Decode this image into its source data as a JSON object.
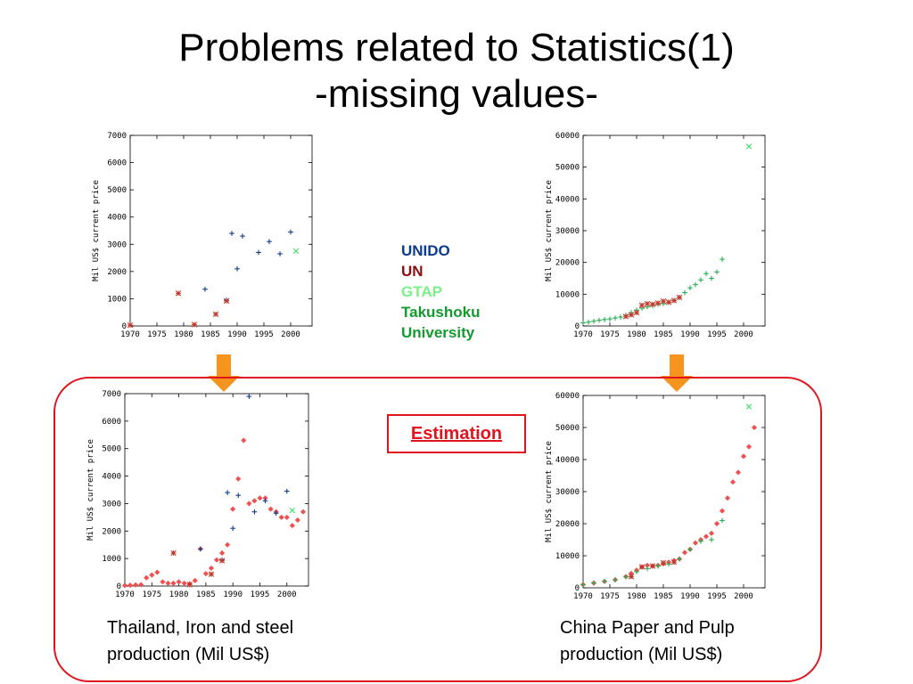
{
  "title": {
    "line1": "Problems related to Statistics(1)",
    "line2": "-missing values-"
  },
  "legend": {
    "items": [
      {
        "label": "UNIDO",
        "color": "#0d3c8c"
      },
      {
        "label": "UN",
        "color": "#8b0f0f"
      },
      {
        "label": "GTAP",
        "color": "#7cf08a"
      },
      {
        "label": "Takushoku",
        "color": "#129a2e"
      },
      {
        "label": "University",
        "color": "#129a2e"
      }
    ]
  },
  "estimation_label": "Estimation",
  "captions": {
    "left_line1": "Thailand, Iron and steel",
    "left_line2": "production (Mil US$)",
    "right_line1": "China Paper and Pulp",
    "right_line2": "production (Mil US$)"
  },
  "colors": {
    "accent_red": "#e0141e",
    "arrow_orange": "#f7941d",
    "unido": "#0d3c8c",
    "un": "#c0392b",
    "gtap": "#3de06a",
    "estimate": "#f05050"
  },
  "chart_data": [
    {
      "id": "thailand_raw",
      "type": "scatter",
      "ylabel": "Mil US$ current price",
      "xlim": [
        1970,
        2004
      ],
      "ylim": [
        0,
        7000
      ],
      "xticks": [
        "1970",
        "1975",
        "1980",
        "1985",
        "1990",
        "1995",
        "2000"
      ],
      "yticks": [
        "0",
        "1000",
        "2000",
        "3000",
        "4000",
        "5000",
        "6000",
        "7000"
      ],
      "series": [
        {
          "key": "unido",
          "marker": "plus",
          "color": "#0d3c8c",
          "x": [
            1984,
            1988,
            1989,
            1990,
            1991,
            1994,
            1996,
            1998,
            2000
          ],
          "y": [
            1350,
            950,
            3400,
            2100,
            3300,
            2700,
            3100,
            2650,
            3450
          ]
        },
        {
          "key": "un",
          "marker": "cross",
          "color": "#c0392b",
          "x": [
            1970,
            1979,
            1982,
            1986,
            1988
          ],
          "y": [
            30,
            1200,
            50,
            430,
            920
          ]
        },
        {
          "key": "gtap",
          "marker": "x",
          "color": "#3de06a",
          "x": [
            2001
          ],
          "y": [
            2750
          ]
        }
      ]
    },
    {
      "id": "china_raw",
      "type": "scatter",
      "ylabel": "Mil US$ current price",
      "xlim": [
        1970,
        2004
      ],
      "ylim": [
        0,
        60000
      ],
      "xticks": [
        "1970",
        "1975",
        "1980",
        "1985",
        "1990",
        "1995",
        "2000"
      ],
      "yticks": [
        "0",
        "10000",
        "20000",
        "30000",
        "40000",
        "50000",
        "60000"
      ],
      "series": [
        {
          "key": "takushoku",
          "marker": "plus",
          "color": "#20b050",
          "x": [
            1970,
            1971,
            1972,
            1973,
            1974,
            1975,
            1976,
            1977,
            1978,
            1979,
            1980,
            1981,
            1982,
            1983,
            1984,
            1985,
            1986,
            1987,
            1988,
            1989,
            1990,
            1991,
            1992,
            1993,
            1994,
            1995,
            1996
          ],
          "y": [
            1000,
            1200,
            1500,
            1800,
            2000,
            2200,
            2500,
            2800,
            3400,
            4200,
            5000,
            5600,
            6000,
            6400,
            6800,
            7000,
            7400,
            8000,
            9000,
            10500,
            12000,
            13000,
            14500,
            16500,
            15000,
            17000,
            21000
          ]
        },
        {
          "key": "un",
          "marker": "cross",
          "color": "#c0392b",
          "x": [
            1978,
            1979,
            1980,
            1981,
            1982,
            1983,
            1984,
            1985,
            1986,
            1987,
            1988
          ],
          "y": [
            3000,
            3500,
            4200,
            6500,
            7000,
            6800,
            7200,
            7800,
            7500,
            8000,
            9000
          ]
        },
        {
          "key": "gtap",
          "marker": "x",
          "color": "#3de06a",
          "x": [
            2001
          ],
          "y": [
            56500
          ]
        }
      ]
    },
    {
      "id": "thailand_est",
      "type": "scatter",
      "ylabel": "Mil US$ current price",
      "xlim": [
        1970,
        2004
      ],
      "ylim": [
        0,
        7000
      ],
      "xticks": [
        "1970",
        "1975",
        "1980",
        "1985",
        "1990",
        "1995",
        "2000"
      ],
      "yticks": [
        "0",
        "1000",
        "2000",
        "3000",
        "4000",
        "5000",
        "6000",
        "7000"
      ],
      "series": [
        {
          "key": "estimate",
          "marker": "diamond",
          "color": "#f05050",
          "x": [
            1970,
            1971,
            1972,
            1973,
            1974,
            1975,
            1976,
            1977,
            1978,
            1979,
            1980,
            1981,
            1982,
            1983,
            1984,
            1985,
            1986,
            1987,
            1988,
            1989,
            1990,
            1991,
            1992,
            1993,
            1994,
            1995,
            1996,
            1997,
            1998,
            1999,
            2000,
            2001,
            2002,
            2003
          ],
          "y": [
            20,
            30,
            40,
            50,
            300,
            400,
            500,
            150,
            100,
            100,
            150,
            100,
            80,
            200,
            1350,
            450,
            650,
            950,
            1200,
            1500,
            2800,
            3900,
            5300,
            3000,
            3100,
            3200,
            3200,
            2800,
            2700,
            2500,
            2500,
            2200,
            2400,
            2700
          ]
        },
        {
          "key": "unido",
          "marker": "plus",
          "color": "#0d3c8c",
          "x": [
            1984,
            1988,
            1989,
            1990,
            1991,
            1993,
            1994,
            1996,
            1998,
            2000
          ],
          "y": [
            1350,
            950,
            3400,
            2100,
            3300,
            6900,
            2700,
            3100,
            2650,
            3450
          ]
        },
        {
          "key": "un",
          "marker": "cross",
          "color": "#c0392b",
          "x": [
            1979,
            1982,
            1986,
            1988
          ],
          "y": [
            1200,
            50,
            430,
            920
          ]
        },
        {
          "key": "gtap",
          "marker": "x",
          "color": "#3de06a",
          "x": [
            2001
          ],
          "y": [
            2750
          ]
        }
      ]
    },
    {
      "id": "china_est",
      "type": "scatter",
      "ylabel": "Mil US$ current price",
      "xlim": [
        1970,
        2004
      ],
      "ylim": [
        0,
        60000
      ],
      "xticks": [
        "1970",
        "1975",
        "1980",
        "1985",
        "1990",
        "1995",
        "2000"
      ],
      "yticks": [
        "0",
        "10000",
        "20000",
        "30000",
        "40000",
        "50000",
        "60000"
      ],
      "series": [
        {
          "key": "estimate",
          "marker": "diamond",
          "color": "#f05050",
          "x": [
            1970,
            1972,
            1974,
            1976,
            1978,
            1979,
            1980,
            1981,
            1982,
            1983,
            1984,
            1985,
            1986,
            1987,
            1988,
            1989,
            1990,
            1991,
            1992,
            1993,
            1994,
            1995,
            1996,
            1997,
            1998,
            1999,
            2000,
            2001,
            2002
          ],
          "y": [
            1000,
            1500,
            2000,
            2500,
            3500,
            4500,
            5500,
            6500,
            7000,
            6800,
            7000,
            7500,
            8000,
            8500,
            9000,
            11000,
            12000,
            14000,
            15000,
            16000,
            17000,
            20000,
            24000,
            28000,
            33000,
            36000,
            41000,
            44000,
            50000
          ]
        },
        {
          "key": "takushoku",
          "marker": "plus",
          "color": "#20b050",
          "x": [
            1970,
            1972,
            1974,
            1976,
            1978,
            1980,
            1982,
            1984,
            1986,
            1988,
            1990,
            1992,
            1994,
            1996
          ],
          "y": [
            1000,
            1500,
            2000,
            2500,
            3400,
            5000,
            6000,
            6800,
            7400,
            9000,
            12000,
            14500,
            15000,
            21000
          ]
        },
        {
          "key": "un",
          "marker": "cross",
          "color": "#c0392b",
          "x": [
            1979,
            1981,
            1983,
            1985,
            1987
          ],
          "y": [
            3500,
            6500,
            6800,
            7800,
            8000
          ]
        },
        {
          "key": "gtap",
          "marker": "x",
          "color": "#3de06a",
          "x": [
            2001
          ],
          "y": [
            56500
          ]
        }
      ]
    }
  ]
}
